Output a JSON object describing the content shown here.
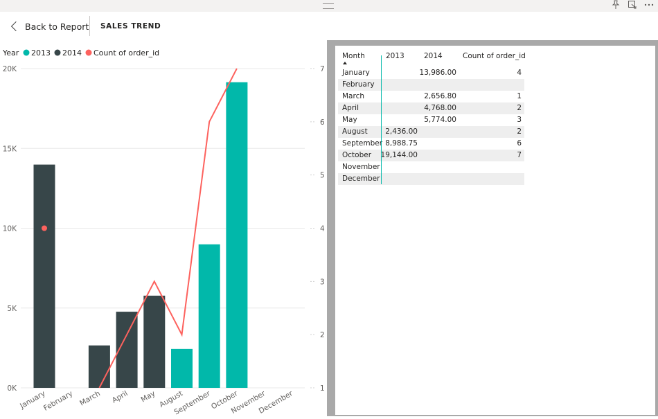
{
  "header": {
    "back_label": "Back to Report",
    "page_title": "SALES TREND"
  },
  "legend": {
    "title": "Year",
    "items": [
      {
        "label": "2013",
        "color": "#01B8AA"
      },
      {
        "label": "2014",
        "color": "#374649"
      },
      {
        "label": "Count of order_id",
        "color": "#FD625E"
      }
    ]
  },
  "chart_data": {
    "type": "bar",
    "categories": [
      "January",
      "February",
      "March",
      "April",
      "May",
      "August",
      "September",
      "October",
      "November",
      "December"
    ],
    "series": [
      {
        "name": "2013",
        "type": "bar",
        "color": "#01B8AA",
        "values": [
          null,
          null,
          null,
          null,
          null,
          2436.0,
          8988.75,
          19144.0,
          null,
          null
        ]
      },
      {
        "name": "2014",
        "type": "bar",
        "color": "#374649",
        "values": [
          13986.0,
          null,
          2656.8,
          4768.0,
          5774.0,
          null,
          null,
          null,
          null,
          null
        ]
      },
      {
        "name": "Count of order_id",
        "type": "line",
        "axis": "secondary",
        "color": "#FD625E",
        "values": [
          4,
          null,
          1,
          2,
          3,
          2,
          6,
          7,
          null,
          null
        ]
      }
    ],
    "y_ticks": [
      "0K",
      "5K",
      "10K",
      "15K",
      "20K"
    ],
    "ylim": [
      0,
      20000
    ],
    "y2_ticks": [
      "1",
      "2",
      "3",
      "4",
      "5",
      "6",
      "7"
    ],
    "y2lim": [
      1,
      7
    ],
    "grid": true,
    "legend_position": "top-left"
  },
  "table": {
    "columns": [
      "Month",
      "2013",
      "2014",
      "Count of order_id"
    ],
    "rows": [
      {
        "month": "January",
        "y2013": "",
        "y2014": "13,986.00",
        "count": "4"
      },
      {
        "month": "February",
        "y2013": "",
        "y2014": "",
        "count": ""
      },
      {
        "month": "March",
        "y2013": "",
        "y2014": "2,656.80",
        "count": "1"
      },
      {
        "month": "April",
        "y2013": "",
        "y2014": "4,768.00",
        "count": "2"
      },
      {
        "month": "May",
        "y2013": "",
        "y2014": "5,774.00",
        "count": "3"
      },
      {
        "month": "August",
        "y2013": "2,436.00",
        "y2014": "",
        "count": "2"
      },
      {
        "month": "September",
        "y2013": "8,988.75",
        "y2014": "",
        "count": "6"
      },
      {
        "month": "October",
        "y2013": "19,144.00",
        "y2014": "",
        "count": "7"
      },
      {
        "month": "November",
        "y2013": "",
        "y2014": "",
        "count": ""
      },
      {
        "month": "December",
        "y2013": "",
        "y2014": "",
        "count": ""
      }
    ]
  }
}
